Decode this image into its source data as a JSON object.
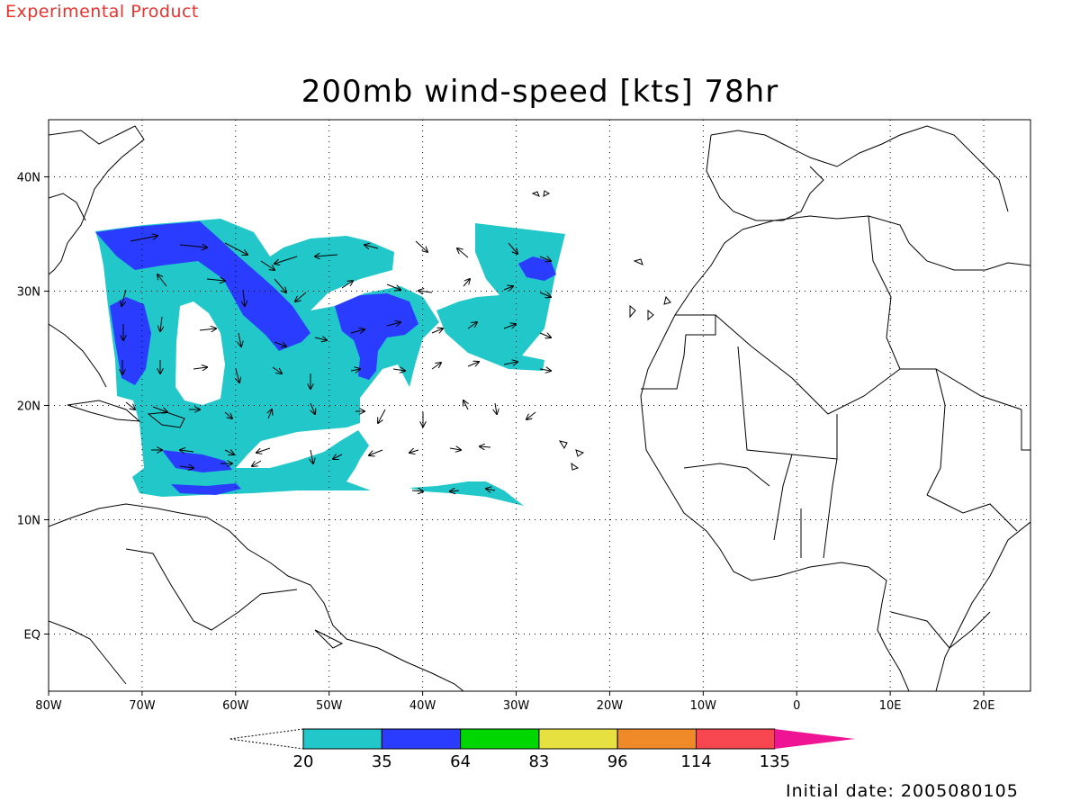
{
  "header": {
    "product_note": "Experimental Product",
    "title": "200mb wind-speed [kts] 78hr"
  },
  "footer": {
    "initial_date": "Initial date: 2005080105"
  },
  "map": {
    "lon_ticks": [
      "80W",
      "70W",
      "60W",
      "50W",
      "40W",
      "30W",
      "20W",
      "10W",
      "0",
      "10E",
      "20E"
    ],
    "lat_ticks": [
      "40N",
      "30N",
      "20N",
      "10N",
      "EQ"
    ],
    "lon_range": [
      -80,
      25
    ],
    "lat_range": [
      -5,
      45
    ]
  },
  "colorbar": {
    "levels": [
      "20",
      "35",
      "64",
      "83",
      "96",
      "114",
      "135"
    ],
    "colors": [
      "#ffffff",
      "#22c7c9",
      "#2a3cff",
      "#00d600",
      "#e6e040",
      "#f08a28",
      "#f84650",
      "#ef1493"
    ]
  }
}
